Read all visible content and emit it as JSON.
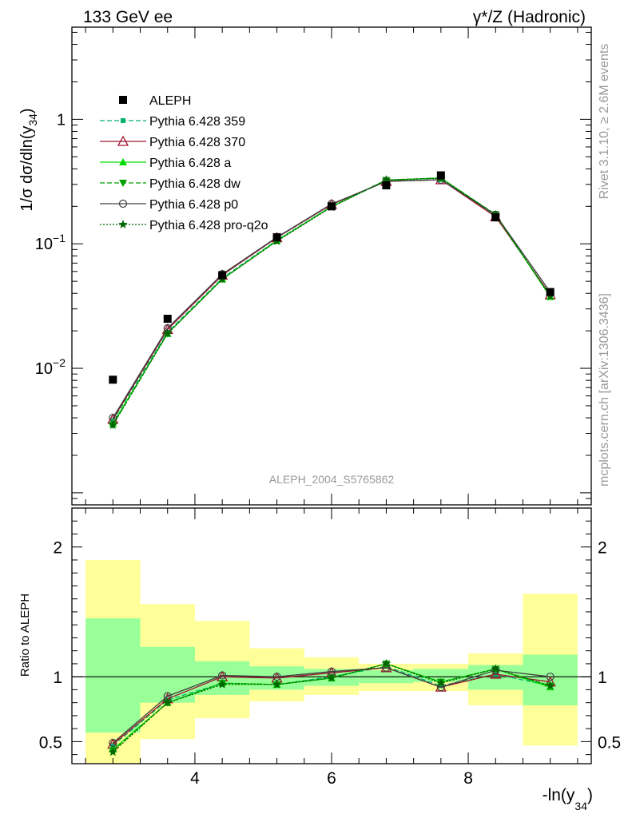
{
  "header": {
    "left": "133 GeV ee",
    "right": "γ*/Z (Hadronic)"
  },
  "side_labels": {
    "rivet": "Rivet 3.1.10, ≥ 2.6M events",
    "mcplots": "mcplots.cern.ch [arXiv:1306.3436]"
  },
  "watermark": "ALEPH_2004_S5765862",
  "colors": {
    "data": "#000000",
    "p359": "#00b26c",
    "p370": "#a0142d",
    "pa": "#00dd00",
    "pdw": "#00a000",
    "pp0": "#404040",
    "pq2o": "#006600",
    "band_inner": "#99ff99",
    "band_outer": "#ffff99"
  },
  "chart_data": [
    {
      "type": "scatter",
      "panel": "main",
      "ylabel": "1/σ dσ/dln(y_34)",
      "yscale": "log",
      "xlim": [
        2.2,
        9.8
      ],
      "ylim": [
        0.0008,
        5.5
      ],
      "ytick_labels": [
        "1",
        "10^-1",
        "10^-2"
      ],
      "ytick_values": [
        1,
        0.1,
        0.01
      ],
      "bins": [
        {
          "lo": 2.4,
          "hi": 3.2
        },
        {
          "lo": 3.2,
          "hi": 4.0
        },
        {
          "lo": 4.0,
          "hi": 4.8
        },
        {
          "lo": 4.8,
          "hi": 5.6
        },
        {
          "lo": 5.6,
          "hi": 6.4
        },
        {
          "lo": 6.4,
          "hi": 7.2
        },
        {
          "lo": 7.2,
          "hi": 8.0
        },
        {
          "lo": 8.0,
          "hi": 8.8
        },
        {
          "lo": 8.8,
          "hi": 9.6
        }
      ],
      "x": [
        2.8,
        3.6,
        4.4,
        5.2,
        6.0,
        6.8,
        7.6,
        8.4,
        9.2
      ],
      "series": [
        {
          "name": "ALEPH",
          "key": "data",
          "values": [
            0.0081,
            0.025,
            0.056,
            0.113,
            0.2,
            0.295,
            0.355,
            0.163,
            0.041
          ]
        },
        {
          "name": "Pythia 6.428 359",
          "key": "p359",
          "values": [
            0.0038,
            0.0195,
            0.053,
            0.107,
            0.2,
            0.32,
            0.328,
            0.168,
            0.038
          ]
        },
        {
          "name": "Pythia 6.428 370",
          "key": "p370",
          "values": [
            0.0039,
            0.0205,
            0.056,
            0.112,
            0.207,
            0.318,
            0.327,
            0.165,
            0.039
          ]
        },
        {
          "name": "Pythia 6.428 a",
          "key": "pa",
          "values": [
            0.0036,
            0.019,
            0.052,
            0.106,
            0.199,
            0.325,
            0.338,
            0.171,
            0.0375
          ]
        },
        {
          "name": "Pythia 6.428 dw",
          "key": "pdw",
          "values": [
            0.0035,
            0.019,
            0.052,
            0.106,
            0.199,
            0.325,
            0.338,
            0.172,
            0.038
          ]
        },
        {
          "name": "Pythia 6.428 p0",
          "key": "pp0",
          "values": [
            0.004,
            0.021,
            0.057,
            0.113,
            0.209,
            0.317,
            0.327,
            0.171,
            0.041
          ]
        },
        {
          "name": "Pythia 6.428 pro-q2o",
          "key": "pq2o",
          "values": [
            0.0035,
            0.019,
            0.052,
            0.105,
            0.197,
            0.325,
            0.337,
            0.171,
            0.038
          ]
        }
      ]
    },
    {
      "type": "line",
      "panel": "ratio",
      "ylabel": "Ratio to ALEPH",
      "xlabel": "-ln(y_34)",
      "xlim": [
        2.2,
        9.8
      ],
      "ylim": [
        0.33,
        2.3
      ],
      "xticks": [
        4,
        6,
        8
      ],
      "yticks": [
        0.5,
        1,
        2
      ],
      "reference": 1,
      "band_inner": [
        [
          0.57,
          1.45
        ],
        [
          0.8,
          1.23
        ],
        [
          0.86,
          1.12
        ],
        [
          0.9,
          1.08
        ],
        [
          0.93,
          1.06
        ],
        [
          0.95,
          1.05
        ],
        [
          0.96,
          1.06
        ],
        [
          0.9,
          1.09
        ],
        [
          0.78,
          1.17
        ]
      ],
      "band_outer": [
        [
          0.33,
          1.9
        ],
        [
          0.52,
          1.56
        ],
        [
          0.68,
          1.43
        ],
        [
          0.81,
          1.22
        ],
        [
          0.86,
          1.15
        ],
        [
          0.89,
          1.1
        ],
        [
          0.89,
          1.1
        ],
        [
          0.78,
          1.18
        ],
        [
          0.47,
          1.64
        ]
      ],
      "series": [
        {
          "name": "Pythia 6.428 359",
          "key": "p359",
          "values": [
            0.47,
            0.82,
            0.95,
            0.94,
            1.0,
            1.08,
            0.93,
            1.02,
            0.93
          ]
        },
        {
          "name": "Pythia 6.428 370",
          "key": "p370",
          "values": [
            0.48,
            0.83,
            1.0,
            0.99,
            1.03,
            1.07,
            0.92,
            1.02,
            0.96
          ]
        },
        {
          "name": "Pythia 6.428 a",
          "key": "pa",
          "values": [
            0.44,
            0.8,
            0.95,
            0.94,
            0.99,
            1.1,
            0.96,
            1.06,
            0.92
          ]
        },
        {
          "name": "Pythia 6.428 dw",
          "key": "pdw",
          "values": [
            0.43,
            0.8,
            0.95,
            0.94,
            0.99,
            1.1,
            0.96,
            1.06,
            0.93
          ]
        },
        {
          "name": "Pythia 6.428 p0",
          "key": "pp0",
          "values": [
            0.49,
            0.85,
            1.01,
            1.0,
            1.04,
            1.07,
            0.92,
            1.05,
            1.0
          ]
        },
        {
          "name": "Pythia 6.428 pro-q2o",
          "key": "pq2o",
          "values": [
            0.42,
            0.8,
            0.94,
            0.94,
            0.99,
            1.1,
            0.95,
            1.06,
            0.93
          ]
        }
      ]
    }
  ]
}
